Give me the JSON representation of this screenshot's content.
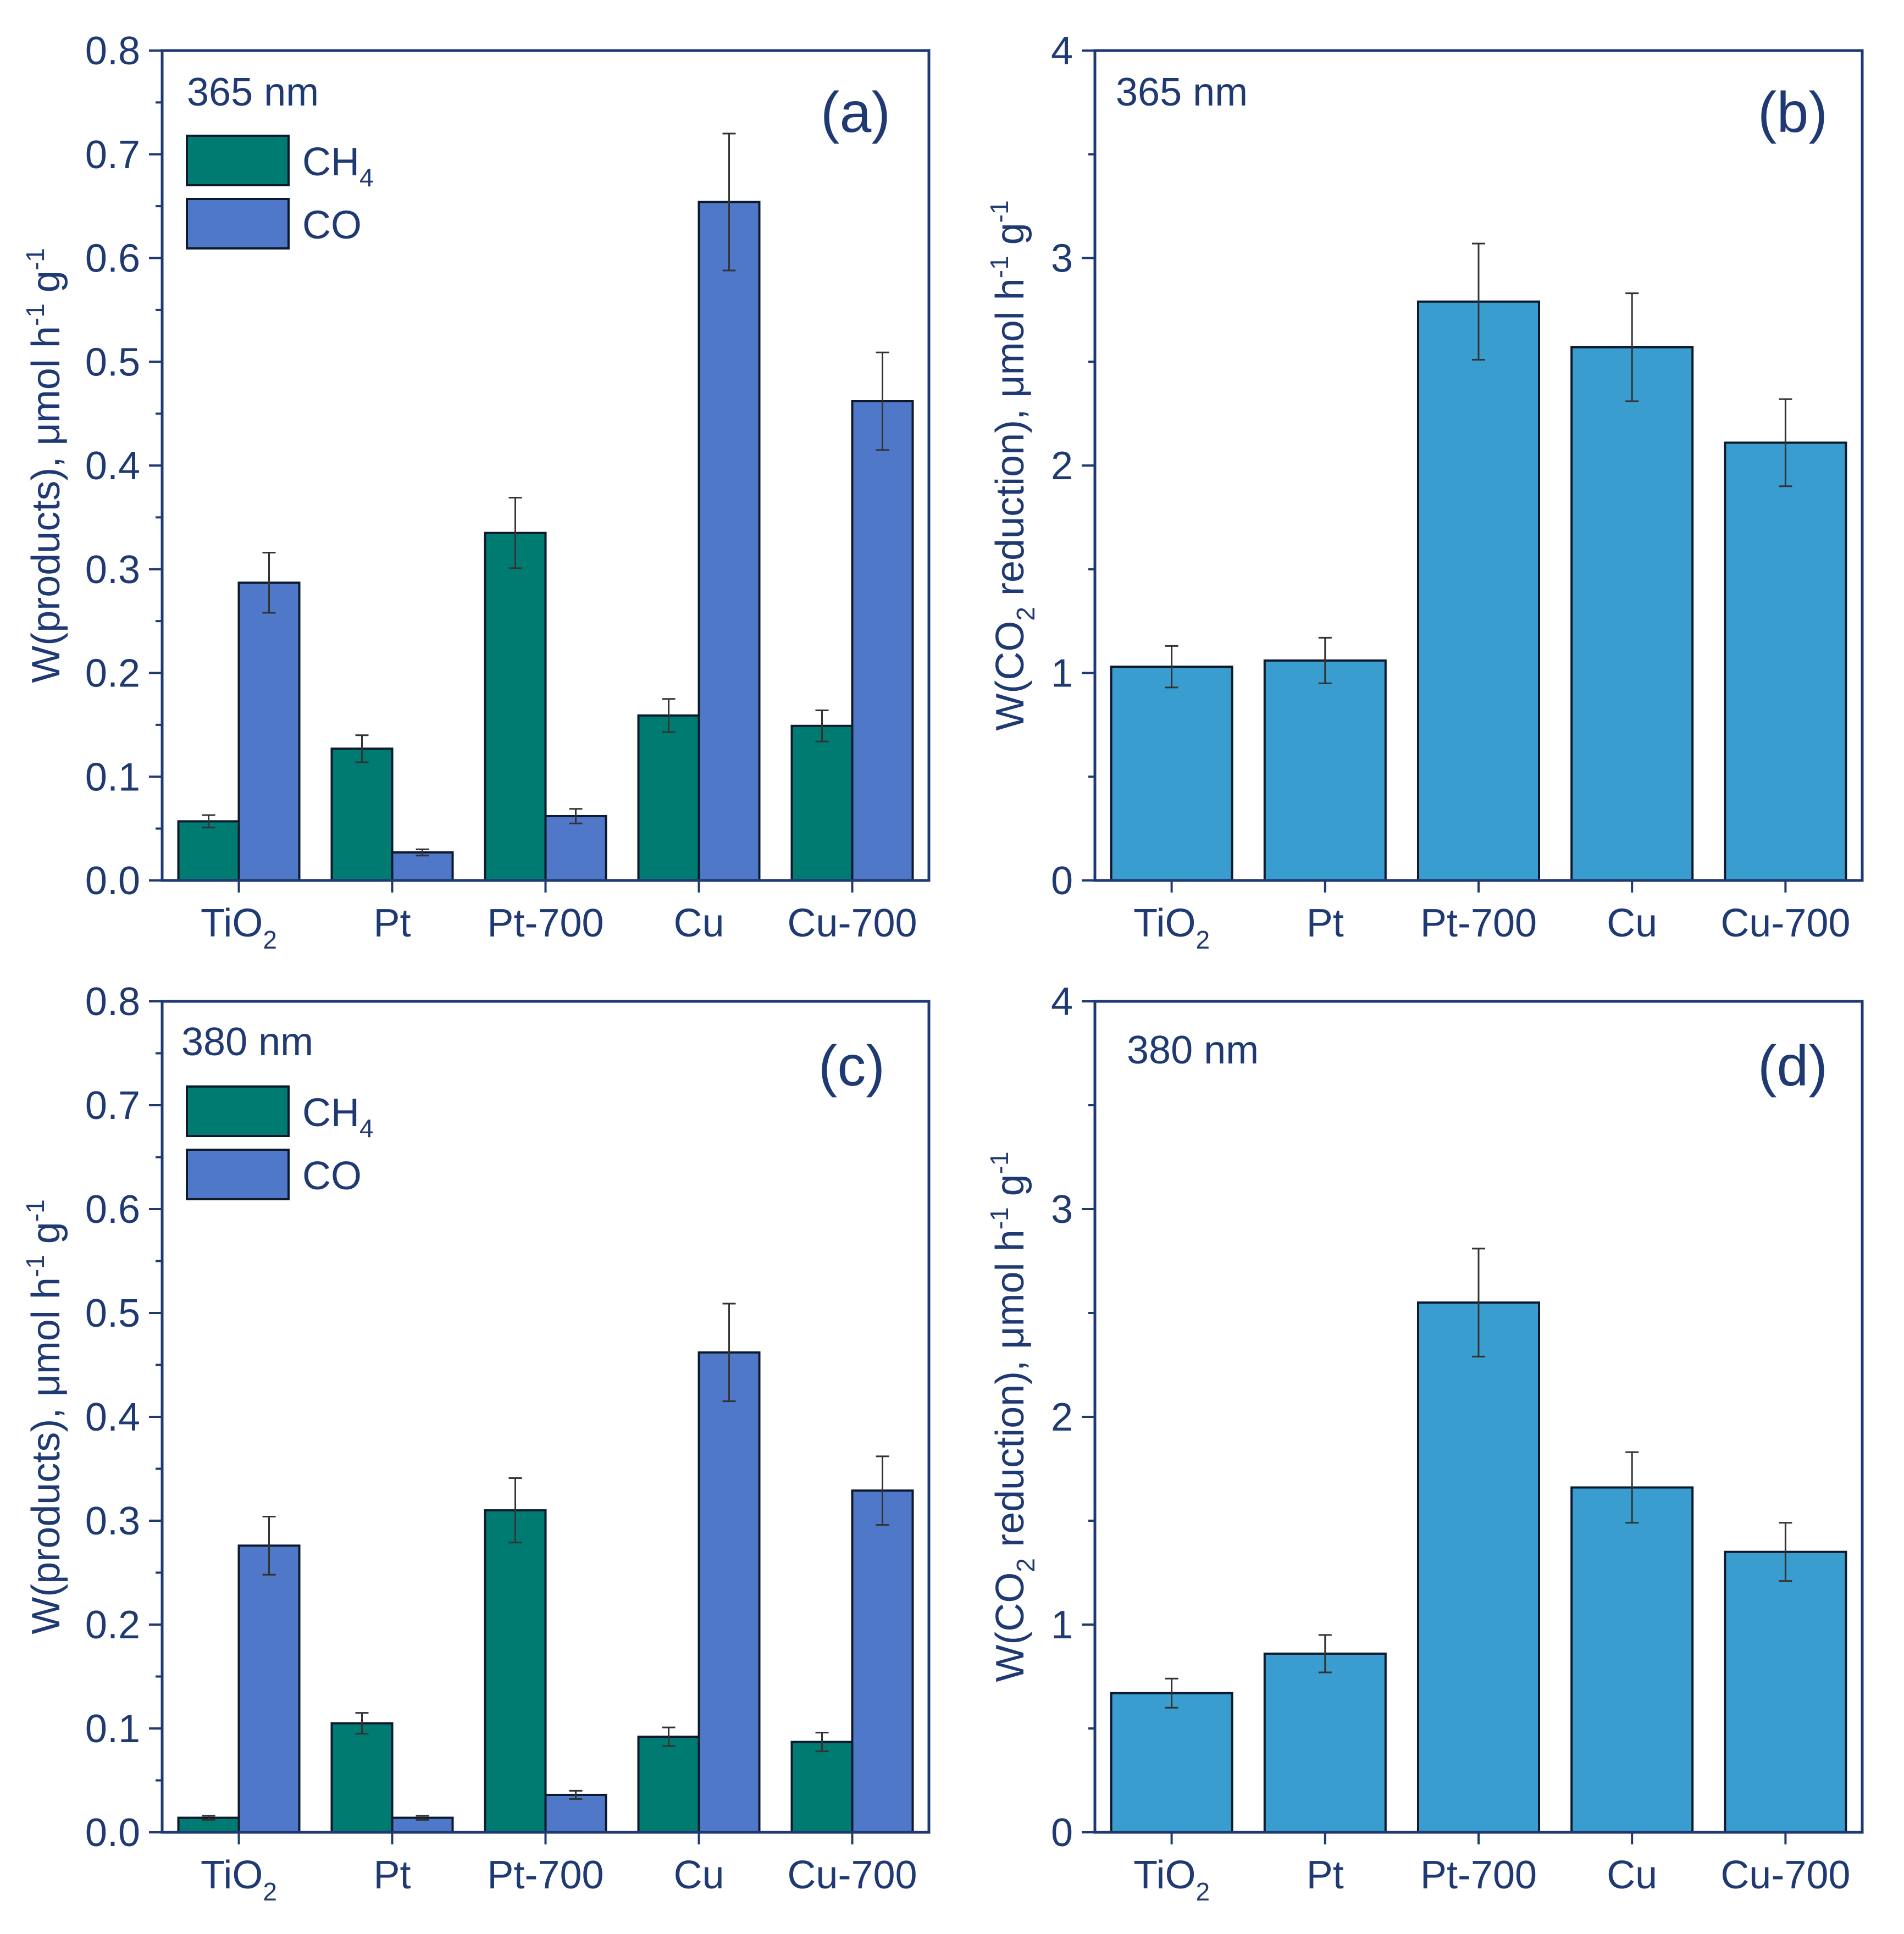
{
  "colors": {
    "axis": "#1f3a73",
    "ch4": "#007b72",
    "co": "#4f78c8",
    "total": "#3a9dcf",
    "edge": "#0d1a2e",
    "errorbar": "#333333"
  },
  "panels": [
    {
      "id": "a",
      "title": "365 nm",
      "letter": "(a)"
    },
    {
      "id": "b",
      "title": "365 nm",
      "letter": "(b)"
    },
    {
      "id": "c",
      "title": "380 nm",
      "letter": "(c)"
    },
    {
      "id": "d",
      "title": "380 nm",
      "letter": "(d)"
    }
  ],
  "axis_labels": {
    "products_main": "W(products), μmol h",
    "products_exp1": "-1",
    "products_mid": " g",
    "products_exp2": "-1",
    "total_pre": "W(CO",
    "total_sub": "2",
    "total_main": " reduction), μmol h",
    "total_exp1": "-1",
    "total_mid": " g",
    "total_exp2": "-1"
  },
  "legend": {
    "ch4_main": "CH",
    "ch4_sub": "4",
    "co": "CO"
  },
  "category_labels": [
    {
      "main": "TiO",
      "sub": "2"
    },
    {
      "main": "Pt",
      "sub": ""
    },
    {
      "main": "Pt-700",
      "sub": ""
    },
    {
      "main": "Cu",
      "sub": ""
    },
    {
      "main": "Cu-700",
      "sub": ""
    }
  ],
  "chart_data": [
    {
      "panel": "a",
      "type": "bar",
      "title": "365 nm",
      "xlabel": "",
      "ylabel": "W(products), μmol h-1 g-1",
      "categories": [
        "TiO2",
        "Pt",
        "Pt-700",
        "Cu",
        "Cu-700"
      ],
      "ylim": [
        0,
        0.8
      ],
      "yticks": [
        "0.0",
        "0.1",
        "0.2",
        "0.3",
        "0.4",
        "0.5",
        "0.6",
        "0.7",
        "0.8"
      ],
      "legend_position": "top-left",
      "series": [
        {
          "name": "CH4",
          "color_key": "ch4",
          "values": [
            0.057,
            0.127,
            0.335,
            0.159,
            0.149
          ],
          "errors": [
            0.006,
            0.013,
            0.034,
            0.016,
            0.015
          ]
        },
        {
          "name": "CO",
          "color_key": "co",
          "values": [
            0.287,
            0.027,
            0.062,
            0.654,
            0.462
          ],
          "errors": [
            0.029,
            0.003,
            0.007,
            0.066,
            0.047
          ]
        }
      ]
    },
    {
      "panel": "b",
      "type": "bar",
      "title": "365 nm",
      "xlabel": "",
      "ylabel": "W(CO2 reduction), μmol h-1 g-1",
      "categories": [
        "TiO2",
        "Pt",
        "Pt-700",
        "Cu",
        "Cu-700"
      ],
      "ylim": [
        0,
        4
      ],
      "yticks": [
        "0",
        "1",
        "2",
        "3",
        "4"
      ],
      "series": [
        {
          "name": "W(CO2 reduction)",
          "color_key": "total",
          "values": [
            1.03,
            1.06,
            2.79,
            2.57,
            2.11
          ],
          "errors": [
            0.1,
            0.11,
            0.28,
            0.26,
            0.21
          ]
        }
      ]
    },
    {
      "panel": "c",
      "type": "bar",
      "title": "380 nm",
      "xlabel": "",
      "ylabel": "W(products), μmol h-1 g-1",
      "categories": [
        "TiO2",
        "Pt",
        "Pt-700",
        "Cu",
        "Cu-700"
      ],
      "ylim": [
        0,
        0.8
      ],
      "yticks": [
        "0.0",
        "0.1",
        "0.2",
        "0.3",
        "0.4",
        "0.5",
        "0.6",
        "0.7",
        "0.8"
      ],
      "legend_position": "top-left",
      "series": [
        {
          "name": "CH4",
          "color_key": "ch4",
          "values": [
            0.014,
            0.105,
            0.31,
            0.092,
            0.087
          ],
          "errors": [
            0.002,
            0.01,
            0.031,
            0.009,
            0.009
          ]
        },
        {
          "name": "CO",
          "color_key": "co",
          "values": [
            0.276,
            0.014,
            0.036,
            0.462,
            0.329
          ],
          "errors": [
            0.028,
            0.002,
            0.004,
            0.047,
            0.033
          ]
        }
      ]
    },
    {
      "panel": "d",
      "type": "bar",
      "title": "380 nm",
      "xlabel": "",
      "ylabel": "W(CO2 reduction), μmol h-1 g-1",
      "categories": [
        "TiO2",
        "Pt",
        "Pt-700",
        "Cu",
        "Cu-700"
      ],
      "ylim": [
        0,
        4
      ],
      "yticks": [
        "0",
        "1",
        "2",
        "3",
        "4"
      ],
      "series": [
        {
          "name": "W(CO2 reduction)",
          "color_key": "total",
          "values": [
            0.67,
            0.86,
            2.55,
            1.66,
            1.35
          ],
          "errors": [
            0.07,
            0.09,
            0.26,
            0.17,
            0.14
          ]
        }
      ]
    }
  ]
}
